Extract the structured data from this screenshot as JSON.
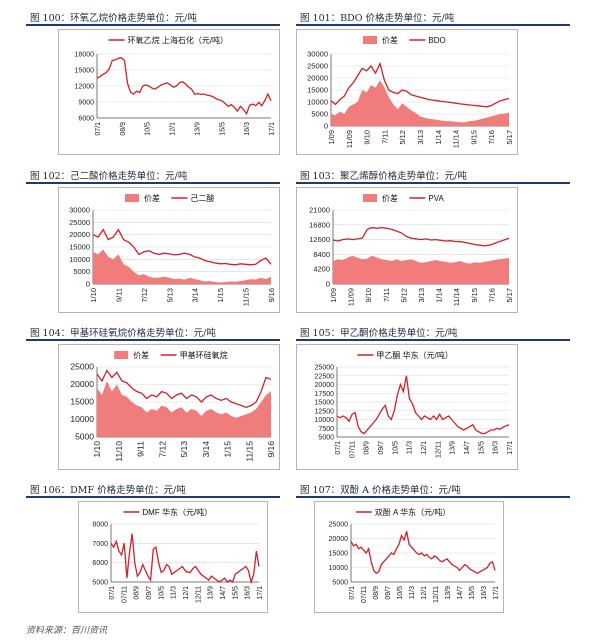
{
  "source": "资料来源：百川资讯",
  "colors": {
    "line": "#d0202a",
    "area": "#f07c7c",
    "rule": "#1f3a6b"
  },
  "figures": [
    {
      "title": "图 100：环氧乙烷价格走势单位：元/吨"
    },
    {
      "title": "图 101：BDO 价格走势单位：元/吨"
    },
    {
      "title": "图 102：己二酸价格走势单位：元/吨"
    },
    {
      "title": "图 103：聚乙烯醇价格走势单位：元/吨"
    },
    {
      "title": "图 104：甲基环硅氧烷价格走势单位：元/吨"
    },
    {
      "title": "图 105：甲乙酮价格走势单位：元/吨"
    },
    {
      "title": "图 106：DMF 价格走势单位：元/吨"
    },
    {
      "title": "图 107：双酚 A 价格走势单位：元/吨"
    }
  ],
  "chart_data": [
    {
      "type": "line",
      "ylim": [
        6000,
        18000
      ],
      "yticks": [
        6000,
        9000,
        12000,
        15000,
        18000
      ],
      "xticks": [
        "07/1",
        "08/9",
        "10/5",
        "12/1",
        "13/9",
        "15/5",
        "16/3",
        "17/1"
      ],
      "series": [
        {
          "name": "环氧乙烷 上海石化（元/吨）",
          "kind": "line",
          "values": [
            13500,
            13800,
            14200,
            14500,
            15200,
            16800,
            16900,
            17200,
            17300,
            16800,
            12500,
            10800,
            10500,
            11000,
            10800,
            12000,
            12200,
            12000,
            11600,
            11400,
            11800,
            12200,
            12400,
            12600,
            12200,
            11800,
            12000,
            12600,
            12800,
            12400,
            11800,
            11400,
            10400,
            10600,
            10400,
            10500,
            10300,
            10200,
            10000,
            9600,
            9400,
            9200,
            8700,
            8200,
            8500,
            8000,
            7300,
            8200,
            7600,
            6800,
            8400,
            8600,
            8300,
            8900,
            8300,
            9300,
            10500,
            9200
          ]
        }
      ]
    },
    {
      "type": "area",
      "ylim": [
        0,
        30000
      ],
      "yticks": [
        0,
        5000,
        10000,
        15000,
        20000,
        25000,
        30000
      ],
      "xticks": [
        "1/09",
        "11/09",
        "9/10",
        "7/11",
        "5/12",
        "3/13",
        "1/14",
        "11/14",
        "9/15",
        "7/16",
        "5/17"
      ],
      "legend_position": "top",
      "series": [
        {
          "name": "价差",
          "kind": "area",
          "values": [
            5000,
            4500,
            6000,
            5000,
            8000,
            9000,
            10000,
            15000,
            14000,
            17000,
            16000,
            19000,
            16000,
            12000,
            9000,
            7000,
            9500,
            8000,
            6500,
            5500,
            4000,
            3500,
            3000,
            2800,
            2500,
            2200,
            2000,
            2000,
            1800,
            1600,
            1500,
            2000,
            2200,
            2500,
            3000,
            3500,
            4000,
            4500,
            5000,
            5200,
            5500
          ]
        },
        {
          "name": "BDO",
          "kind": "line",
          "values": [
            10500,
            9000,
            11000,
            12500,
            16000,
            18000,
            21000,
            24000,
            23000,
            25000,
            22000,
            26000,
            19000,
            15000,
            14000,
            13500,
            15000,
            14500,
            13000,
            12500,
            12000,
            11500,
            11000,
            10800,
            10500,
            10200,
            10000,
            9800,
            9500,
            9200,
            9000,
            8800,
            8600,
            8400,
            8200,
            8000,
            8500,
            9500,
            10500,
            11000,
            11500
          ]
        }
      ]
    },
    {
      "type": "area",
      "ylim": [
        0,
        30000
      ],
      "yticks": [
        0,
        5000,
        10000,
        15000,
        20000,
        25000,
        30000
      ],
      "xticks": [
        "1/10",
        "9/11",
        "7/12",
        "5/13",
        "3/14",
        "1/15",
        "11/15",
        "9/16"
      ],
      "legend_position": "top",
      "series": [
        {
          "name": "价差",
          "kind": "area",
          "values": [
            13000,
            12000,
            14000,
            11000,
            10000,
            12000,
            8000,
            7000,
            5000,
            3500,
            4000,
            3000,
            2500,
            2600,
            3000,
            2500,
            2000,
            2200,
            1800,
            2500,
            2000,
            1500,
            1000,
            1200,
            800,
            600,
            800,
            1000,
            900,
            1200,
            1500,
            2000,
            1800,
            2500,
            2000,
            3000
          ]
        },
        {
          "name": "己二酸",
          "kind": "line",
          "values": [
            20000,
            19000,
            22000,
            18000,
            19000,
            22000,
            18000,
            17000,
            15000,
            12000,
            13000,
            13500,
            12500,
            12000,
            12500,
            12200,
            11800,
            12000,
            12500,
            12000,
            11000,
            10500,
            9500,
            9000,
            8500,
            8200,
            8300,
            8000,
            7800,
            8200,
            8000,
            7800,
            8000,
            9500,
            10500,
            8000
          ]
        }
      ]
    },
    {
      "type": "area",
      "ylim": [
        0,
        21000
      ],
      "yticks": [
        0,
        4200,
        8400,
        12600,
        16800,
        21000
      ],
      "xticks": [
        "1/09",
        "11/09",
        "9/10",
        "7/11",
        "5/12",
        "3/13",
        "1/14",
        "11/14",
        "9/15",
        "7/16",
        "5/17"
      ],
      "legend_position": "top",
      "series": [
        {
          "name": "价差",
          "kind": "area",
          "values": [
            6500,
            7000,
            6800,
            7500,
            8000,
            7500,
            7000,
            7200,
            8000,
            7500,
            7000,
            6800,
            6500,
            7000,
            6500,
            6800,
            7000,
            6500,
            6000,
            6200,
            6500,
            6800,
            6500,
            6300,
            6000,
            6200,
            6500,
            6000,
            5800,
            6200,
            6000,
            6300,
            6500,
            6800,
            7000,
            7200,
            7400
          ]
        },
        {
          "name": "PVA",
          "kind": "line",
          "values": [
            12500,
            12200,
            12600,
            12800,
            12600,
            12800,
            13000,
            15500,
            16000,
            15800,
            16000,
            15800,
            15500,
            15000,
            14500,
            13500,
            13000,
            12800,
            12600,
            12800,
            12500,
            12600,
            12400,
            12200,
            12300,
            12100,
            12000,
            11800,
            11500,
            11200,
            11000,
            10800,
            11000,
            11500,
            12000,
            12500,
            13000
          ]
        }
      ]
    },
    {
      "type": "area",
      "ylim": [
        5000,
        25000
      ],
      "yticks": [
        5000,
        10000,
        15000,
        20000,
        25000
      ],
      "xticks": [
        "1/10",
        "11/10",
        "9/11",
        "7/12",
        "5/13",
        "3/14",
        "1/15",
        "11/15",
        "9/16"
      ],
      "legend_position": "top",
      "series": [
        {
          "name": "价差",
          "kind": "area",
          "values": [
            19000,
            17000,
            21000,
            18000,
            20000,
            17000,
            16500,
            15000,
            14000,
            13500,
            12000,
            13000,
            12500,
            14000,
            13500,
            12000,
            13000,
            13500,
            12000,
            13000,
            12500,
            11000,
            12500,
            13000,
            12000,
            11500,
            12000,
            11000,
            10500,
            11000,
            11500,
            12000,
            13000,
            15000,
            17000,
            18000
          ]
        },
        {
          "name": "甲基环硅氧烷",
          "kind": "line",
          "values": [
            23000,
            21000,
            24000,
            22000,
            23500,
            21000,
            20500,
            19000,
            18000,
            17500,
            16000,
            17000,
            16500,
            18000,
            17500,
            16000,
            17000,
            17500,
            16000,
            17000,
            16500,
            15000,
            16500,
            17000,
            16000,
            15500,
            16000,
            15000,
            14500,
            14000,
            13500,
            14000,
            15000,
            18000,
            22000,
            21500
          ]
        }
      ]
    },
    {
      "type": "line",
      "ylim": [
        5000,
        25000
      ],
      "yticks": [
        5000,
        7500,
        10000,
        12500,
        15000,
        17500,
        20000,
        22500,
        25000
      ],
      "xticks": [
        "07/1",
        "07/11",
        "08/9",
        "09/7",
        "10/5",
        "11/3",
        "12/1",
        "12/11",
        "13/9",
        "14/7",
        "15/5",
        "16/3",
        "17/1"
      ],
      "series": [
        {
          "name": "甲乙酮 华东（元/吨）",
          "kind": "line",
          "values": [
            11000,
            10500,
            11000,
            10500,
            9500,
            11500,
            12000,
            8000,
            6500,
            6000,
            7000,
            8000,
            9000,
            10000,
            11500,
            13000,
            14000,
            11000,
            10000,
            12500,
            17000,
            20000,
            18000,
            22500,
            16000,
            14500,
            12000,
            11000,
            10000,
            11000,
            10500,
            10000,
            11000,
            10000,
            11500,
            10000,
            10500,
            11000,
            10000,
            9000,
            8000,
            7500,
            7000,
            7500,
            8000,
            8500,
            7000,
            6500,
            6000,
            6000,
            6500,
            7000,
            7000,
            7500,
            7200,
            7800,
            8200,
            8500
          ]
        }
      ]
    },
    {
      "type": "line",
      "ylim": [
        5000,
        8000
      ],
      "yticks": [
        5000,
        6000,
        7000,
        8000
      ],
      "xticks": [
        "07/1",
        "07/11",
        "08/9",
        "09/7",
        "10/5",
        "11/3",
        "12/1",
        "12/11",
        "13/9",
        "14/7",
        "15/5",
        "16/3",
        "17/1"
      ],
      "series": [
        {
          "name": "DMF 华东（元/吨）",
          "kind": "line",
          "values": [
            7000,
            6800,
            7100,
            6600,
            6400,
            7000,
            5200,
            6500,
            7500,
            6000,
            5300,
            5500,
            5900,
            5600,
            5300,
            5100,
            6700,
            6800,
            6000,
            5500,
            5600,
            5900,
            5800,
            5400,
            5500,
            5600,
            5700,
            5800,
            5600,
            5500,
            5500,
            5700,
            5800,
            5600,
            5400,
            5300,
            5200,
            5100,
            5300,
            5200,
            5100,
            5000,
            5100,
            5200,
            5000,
            5100,
            5000,
            5400,
            5500,
            5600,
            5700,
            5800,
            5600,
            5000,
            5400,
            6600,
            5800
          ]
        }
      ]
    },
    {
      "type": "line",
      "ylim": [
        5000,
        25000
      ],
      "yticks": [
        5000,
        10000,
        15000,
        20000,
        25000
      ],
      "xticks": [
        "07/1",
        "07/11",
        "08/9",
        "09/7",
        "10/5",
        "11/3",
        "12/1",
        "12/11",
        "13/9",
        "14/7",
        "15/5",
        "16/3",
        "17/1"
      ],
      "series": [
        {
          "name": "双酚 A 华东（元/吨）",
          "kind": "line",
          "values": [
            19000,
            17500,
            18000,
            16500,
            17000,
            16000,
            15000,
            16500,
            12000,
            9000,
            8000,
            8500,
            11000,
            12000,
            13000,
            14000,
            15000,
            14500,
            16500,
            18000,
            21000,
            19500,
            22500,
            18000,
            17000,
            16000,
            15000,
            14500,
            15000,
            14000,
            14500,
            13500,
            13000,
            14000,
            13500,
            12500,
            12000,
            12500,
            13000,
            12000,
            11000,
            10500,
            10000,
            9000,
            10000,
            11000,
            10500,
            9500,
            9000,
            8500,
            8000,
            8500,
            9000,
            9500,
            10000,
            11500,
            12000,
            9000
          ]
        }
      ]
    }
  ]
}
